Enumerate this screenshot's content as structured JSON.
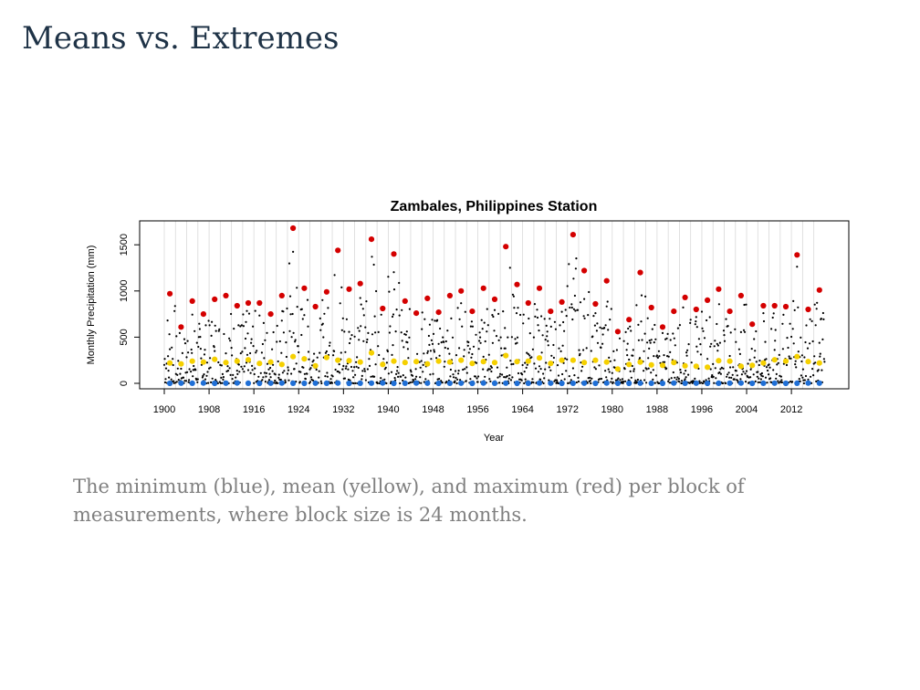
{
  "page": {
    "title": "Means vs. Extremes",
    "caption": "The minimum (blue), mean (yellow), and maximum (red) per block of measurements, where block size is 24 months."
  },
  "colors": {
    "min": "#1f6fd6",
    "mean": "#f5d000",
    "max": "#d40000",
    "obs": "#000000",
    "grid": "#d9d9d9"
  },
  "chart_data": {
    "type": "scatter",
    "title": "Zambales, Philippines Station",
    "xlabel": "Year",
    "ylabel": "Monthly Precipitation (mm)",
    "xlim": [
      1900,
      2019
    ],
    "ylim": [
      0,
      1700
    ],
    "x_ticks": [
      1900,
      1908,
      1916,
      1924,
      1932,
      1940,
      1948,
      1956,
      1964,
      1972,
      1980,
      1988,
      1996,
      2004,
      2012
    ],
    "x_tick_labels": [
      "1900",
      "1908",
      "1916",
      "1924",
      "1932",
      "1940",
      "1948",
      "1956",
      "1964",
      "1972",
      "1980",
      "1988",
      "1996",
      "2004",
      "2012"
    ],
    "y_ticks": [
      0,
      500,
      1000,
      1500
    ],
    "y_tick_labels": [
      "0",
      "500",
      "1000",
      "1500"
    ],
    "grid": "vertical lines at block boundaries",
    "block_size_months": 24,
    "series": [
      {
        "name": "minimum",
        "x": [
          1900,
          1902,
          1904,
          1906,
          1908,
          1910,
          1912,
          1914,
          1916,
          1918,
          1920,
          1922,
          1924,
          1926,
          1928,
          1930,
          1932,
          1934,
          1936,
          1938,
          1940,
          1942,
          1944,
          1946,
          1948,
          1950,
          1952,
          1954,
          1956,
          1958,
          1960,
          1962,
          1964,
          1966,
          1968,
          1970,
          1972,
          1974,
          1976,
          1978,
          1980,
          1982,
          1984,
          1986,
          1988,
          1990,
          1992,
          1994,
          1996,
          1998,
          2000,
          2002,
          2004,
          2006,
          2008,
          2010,
          2012,
          2014,
          2016
        ],
        "values": [
          0,
          2,
          1,
          3,
          0,
          2,
          4,
          1,
          0,
          2,
          3,
          1,
          0,
          2,
          1,
          3,
          0,
          1,
          2,
          4,
          0,
          1,
          3,
          2,
          0,
          1,
          2,
          0,
          3,
          1,
          2,
          0,
          1,
          3,
          2,
          0,
          1,
          2,
          0,
          3,
          1,
          0,
          2,
          1,
          0,
          3,
          1,
          2,
          0,
          1,
          2,
          3,
          0,
          1,
          2,
          0,
          1,
          3,
          2
        ]
      },
      {
        "name": "mean",
        "x": [
          1900,
          1902,
          1904,
          1906,
          1908,
          1910,
          1912,
          1914,
          1916,
          1918,
          1920,
          1922,
          1924,
          1926,
          1928,
          1930,
          1932,
          1934,
          1936,
          1938,
          1940,
          1942,
          1944,
          1946,
          1948,
          1950,
          1952,
          1954,
          1956,
          1958,
          1960,
          1962,
          1964,
          1966,
          1968,
          1970,
          1972,
          1974,
          1976,
          1978,
          1980,
          1982,
          1984,
          1986,
          1988,
          1990,
          1992,
          1994,
          1996,
          1998,
          2000,
          2002,
          2004,
          2006,
          2008,
          2010,
          2012,
          2014,
          2016
        ],
        "values": [
          220,
          210,
          240,
          230,
          260,
          225,
          240,
          255,
          215,
          230,
          205,
          290,
          265,
          190,
          280,
          250,
          245,
          230,
          330,
          205,
          240,
          225,
          235,
          210,
          240,
          230,
          250,
          215,
          235,
          225,
          300,
          235,
          240,
          275,
          215,
          250,
          250,
          225,
          250,
          230,
          155,
          205,
          230,
          200,
          195,
          225,
          190,
          185,
          175,
          245,
          240,
          185,
          195,
          220,
          255,
          240,
          290,
          235,
          220
        ]
      },
      {
        "name": "maximum",
        "x": [
          1900,
          1902,
          1904,
          1906,
          1908,
          1910,
          1912,
          1914,
          1916,
          1918,
          1920,
          1922,
          1924,
          1926,
          1928,
          1930,
          1932,
          1934,
          1936,
          1938,
          1940,
          1942,
          1944,
          1946,
          1948,
          1950,
          1952,
          1954,
          1956,
          1958,
          1960,
          1962,
          1964,
          1966,
          1968,
          1970,
          1972,
          1974,
          1976,
          1978,
          1980,
          1982,
          1984,
          1986,
          1988,
          1990,
          1992,
          1994,
          1996,
          1998,
          2000,
          2002,
          2004,
          2006,
          2008,
          2010,
          2012,
          2014,
          2016
        ],
        "values": [
          970,
          610,
          890,
          750,
          910,
          950,
          840,
          870,
          870,
          750,
          950,
          1680,
          1030,
          830,
          990,
          1440,
          1020,
          1080,
          1560,
          810,
          1400,
          890,
          760,
          920,
          770,
          950,
          1000,
          780,
          1030,
          910,
          1480,
          1070,
          870,
          1030,
          780,
          880,
          1610,
          1220,
          860,
          1110,
          560,
          690,
          1200,
          820,
          610,
          780,
          930,
          800,
          900,
          1020,
          780,
          950,
          640,
          840,
          840,
          830,
          1390,
          800,
          1010
        ]
      }
    ]
  }
}
